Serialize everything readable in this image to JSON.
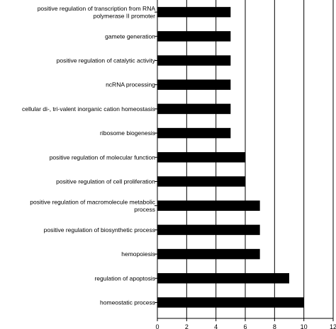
{
  "chart_data": {
    "type": "bar",
    "orientation": "horizontal",
    "categories": [
      [
        "positive regulation of transcription from RNA",
        "polymerase II promoter"
      ],
      [
        "gamete generation"
      ],
      [
        "positive regulation of catalytic activity"
      ],
      [
        "ncRNA processing"
      ],
      [
        "cellular di-, tri-valent inorganic cation homeostasis"
      ],
      [
        "ribosome biogenesis"
      ],
      [
        "positive regulation of molecular function"
      ],
      [
        "positive regulation of cell proliferation"
      ],
      [
        "positive regulation of macromolecule metabolic",
        "process"
      ],
      [
        "positive regulation of biosynthetic process"
      ],
      [
        "hemopoiesis"
      ],
      [
        "regulation of apoptosis"
      ],
      [
        "homeostatic process"
      ]
    ],
    "values": [
      5,
      5,
      5,
      5,
      5,
      5,
      6,
      6,
      7,
      7,
      7,
      9,
      10
    ],
    "xlim": [
      0,
      12
    ],
    "xticks": [
      "0",
      "2",
      "4",
      "6",
      "8",
      "10",
      "12"
    ],
    "grid": "vertical",
    "bar_color": "#000000",
    "title": "",
    "xlabel": "",
    "ylabel": ""
  }
}
